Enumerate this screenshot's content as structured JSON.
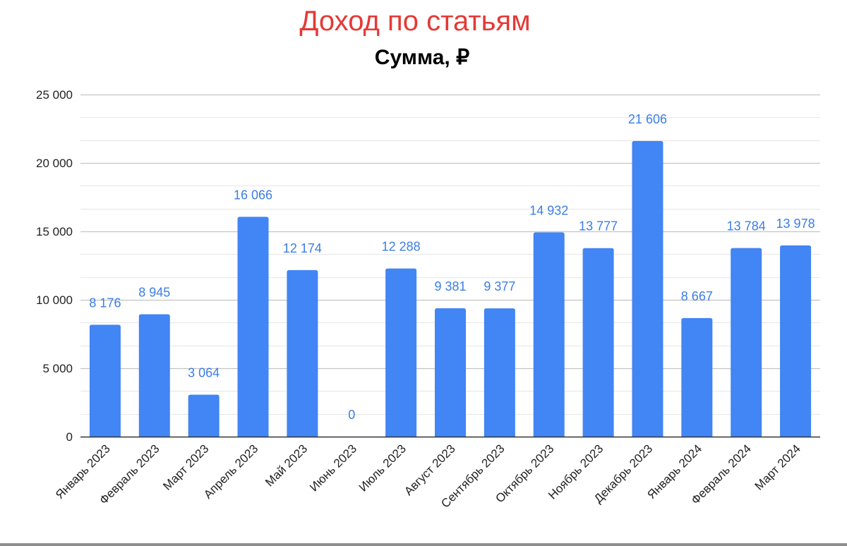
{
  "chart_data": {
    "type": "bar",
    "title": "Доход по статьям",
    "subtitle": "Сумма, ₽",
    "xlabel": "",
    "ylabel": "",
    "categories": [
      "Январь 2023",
      "Февраль 2023",
      "Март 2023",
      "Апрель 2023",
      "Май 2023",
      "Июнь 2023",
      "Июль 2023",
      "Август 2023",
      "Сентябрь 2023",
      "Октябрь 2023",
      "Ноябрь 2023",
      "Декабрь 2023",
      "Январь 2024",
      "Февраль 2024",
      "Март 2024"
    ],
    "values": [
      8176,
      8945,
      3064,
      16066,
      12174,
      0,
      12288,
      9381,
      9377,
      14932,
      13777,
      21606,
      8667,
      13784,
      13978
    ],
    "value_labels": [
      "8 176",
      "8 945",
      "3 064",
      "16 066",
      "12 174",
      "0",
      "12 288",
      "9 381",
      "9 377",
      "14 932",
      "13 777",
      "21 606",
      "8 667",
      "13 784",
      "13 978"
    ],
    "ylim": [
      0,
      25000
    ],
    "yticks": [
      0,
      5000,
      10000,
      15000,
      20000,
      25000
    ],
    "ytick_labels": [
      "0",
      "5 000",
      "10 000",
      "15 000",
      "20 000",
      "25 000"
    ],
    "grid": true,
    "legend": "none",
    "colors": {
      "bar": "#4285f4",
      "data_label": "#3c7de6",
      "title": "#e53935",
      "subtitle": "#000000",
      "major_grid": "#c4c4c4",
      "minor_grid": "#e6e6e6",
      "axis": "#333333"
    }
  }
}
